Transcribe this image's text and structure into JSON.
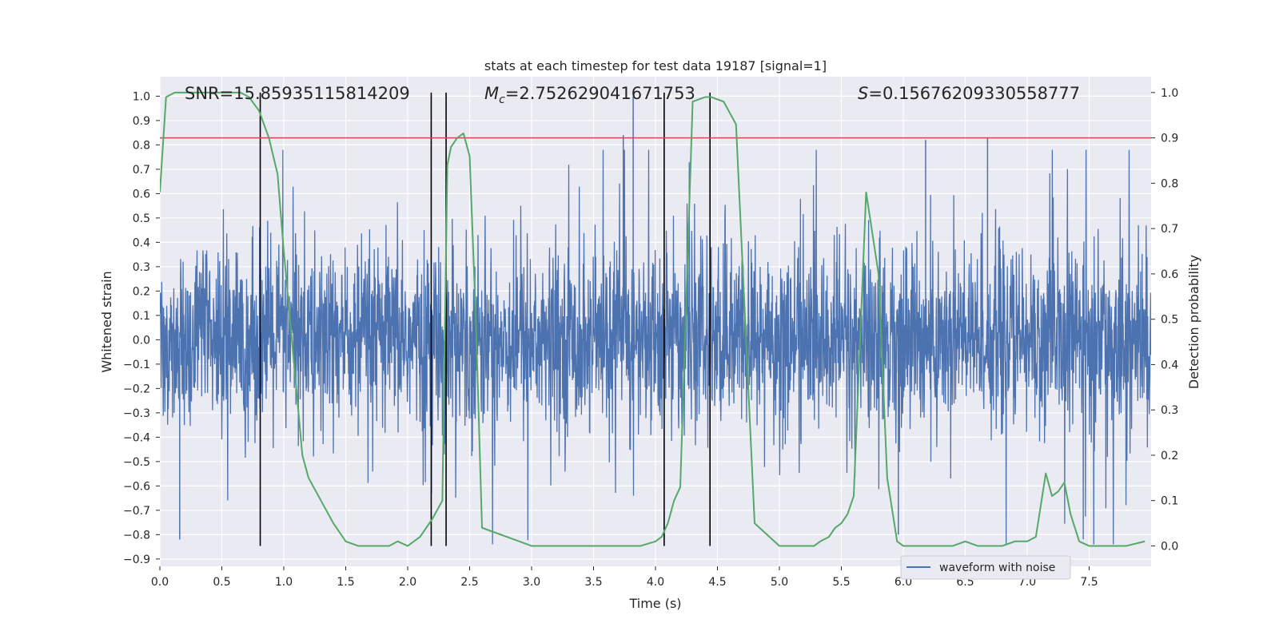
{
  "chart_data": {
    "type": "line",
    "title": "stats at each timestep for test data 19187 [signal=1]",
    "xlabel": "Time (s)",
    "ylabel": "Whitened strain",
    "ylabel_right": "Detection probability",
    "xlim": [
      0.0,
      8.0
    ],
    "ylim": [
      -0.93,
      1.08
    ],
    "ylim_right": [
      -0.045,
      1.035
    ],
    "x_ticks": [
      "0.0",
      "0.5",
      "1.0",
      "1.5",
      "2.0",
      "2.5",
      "3.0",
      "3.5",
      "4.0",
      "4.5",
      "5.0",
      "5.5",
      "6.0",
      "6.5",
      "7.0",
      "7.5"
    ],
    "y_ticks": [
      "−0.9",
      "−0.8",
      "−0.7",
      "−0.6",
      "−0.5",
      "−0.4",
      "−0.3",
      "−0.2",
      "−0.1",
      "0.0",
      "0.1",
      "0.2",
      "0.3",
      "0.4",
      "0.5",
      "0.6",
      "0.7",
      "0.8",
      "0.9",
      "1.0"
    ],
    "y_ticks_right": [
      "0.0",
      "0.1",
      "0.2",
      "0.3",
      "0.4",
      "0.5",
      "0.6",
      "0.7",
      "0.8",
      "0.9",
      "1.0"
    ],
    "grid": true,
    "legend_position": "lower-right",
    "annotations": {
      "snr": "SNR=15.85935115814209",
      "mc_symbol": "M",
      "mc_sub": "c",
      "mc_value": "=2.752629041671753",
      "s_symbol": "S",
      "s_value": "=0.15676209330558777"
    },
    "threshold_right": 0.9,
    "vertical_lines_x": [
      0.81,
      2.19,
      2.31,
      4.07,
      4.44
    ],
    "waveform": {
      "name": "waveform with noise",
      "color": "#4c72b0",
      "time_span": [
        0.0,
        8.0
      ],
      "notable_peaks": [
        {
          "x": 3.82,
          "y": 1.0
        },
        {
          "x": 3.74,
          "y": 0.84
        },
        {
          "x": 6.18,
          "y": 0.82
        },
        {
          "x": 6.68,
          "y": 0.83
        },
        {
          "x": 0.16,
          "y": -0.82
        },
        {
          "x": 5.96,
          "y": -0.8
        }
      ]
    },
    "detection_probability": {
      "color": "#55a868",
      "x": [
        0.0,
        0.05,
        0.12,
        0.3,
        0.5,
        0.65,
        0.72,
        0.8,
        0.88,
        0.95,
        1.0,
        1.1,
        1.15,
        1.2,
        1.3,
        1.4,
        1.5,
        1.6,
        1.7,
        1.75,
        1.85,
        1.92,
        2.0,
        2.05,
        2.1,
        2.15,
        2.2,
        2.28,
        2.32,
        2.35,
        2.4,
        2.45,
        2.5,
        2.55,
        2.6,
        3.0,
        3.4,
        3.5,
        3.65,
        3.72,
        3.8,
        3.88,
        4.0,
        4.05,
        4.1,
        4.15,
        4.2,
        4.3,
        4.4,
        4.45,
        4.55,
        4.65,
        4.8,
        5.0,
        5.1,
        5.2,
        5.28,
        5.33,
        5.4,
        5.45,
        5.5,
        5.55,
        5.6,
        5.7,
        5.8,
        5.87,
        5.95,
        6.0,
        6.2,
        6.4,
        6.5,
        6.6,
        6.8,
        6.9,
        7.0,
        7.07,
        7.15,
        7.2,
        7.25,
        7.3,
        7.35,
        7.42,
        7.5,
        7.6,
        7.8,
        7.95
      ],
      "y": [
        0.78,
        0.99,
        1.0,
        1.0,
        1.0,
        1.0,
        0.99,
        0.96,
        0.9,
        0.82,
        0.65,
        0.35,
        0.2,
        0.15,
        0.1,
        0.05,
        0.01,
        0.0,
        0.0,
        0.0,
        0.0,
        0.01,
        0.0,
        0.01,
        0.02,
        0.04,
        0.06,
        0.1,
        0.84,
        0.88,
        0.9,
        0.91,
        0.86,
        0.5,
        0.04,
        0.0,
        0.0,
        0.0,
        0.0,
        0.0,
        0.0,
        0.0,
        0.01,
        0.02,
        0.05,
        0.1,
        0.13,
        0.98,
        0.99,
        0.99,
        0.98,
        0.93,
        0.05,
        0.0,
        0.0,
        0.0,
        0.0,
        0.01,
        0.02,
        0.04,
        0.05,
        0.07,
        0.11,
        0.78,
        0.6,
        0.15,
        0.01,
        0.0,
        0.0,
        0.0,
        0.01,
        0.0,
        0.0,
        0.01,
        0.01,
        0.02,
        0.16,
        0.11,
        0.12,
        0.14,
        0.07,
        0.01,
        0.0,
        0.0,
        0.0,
        0.01
      ]
    }
  }
}
